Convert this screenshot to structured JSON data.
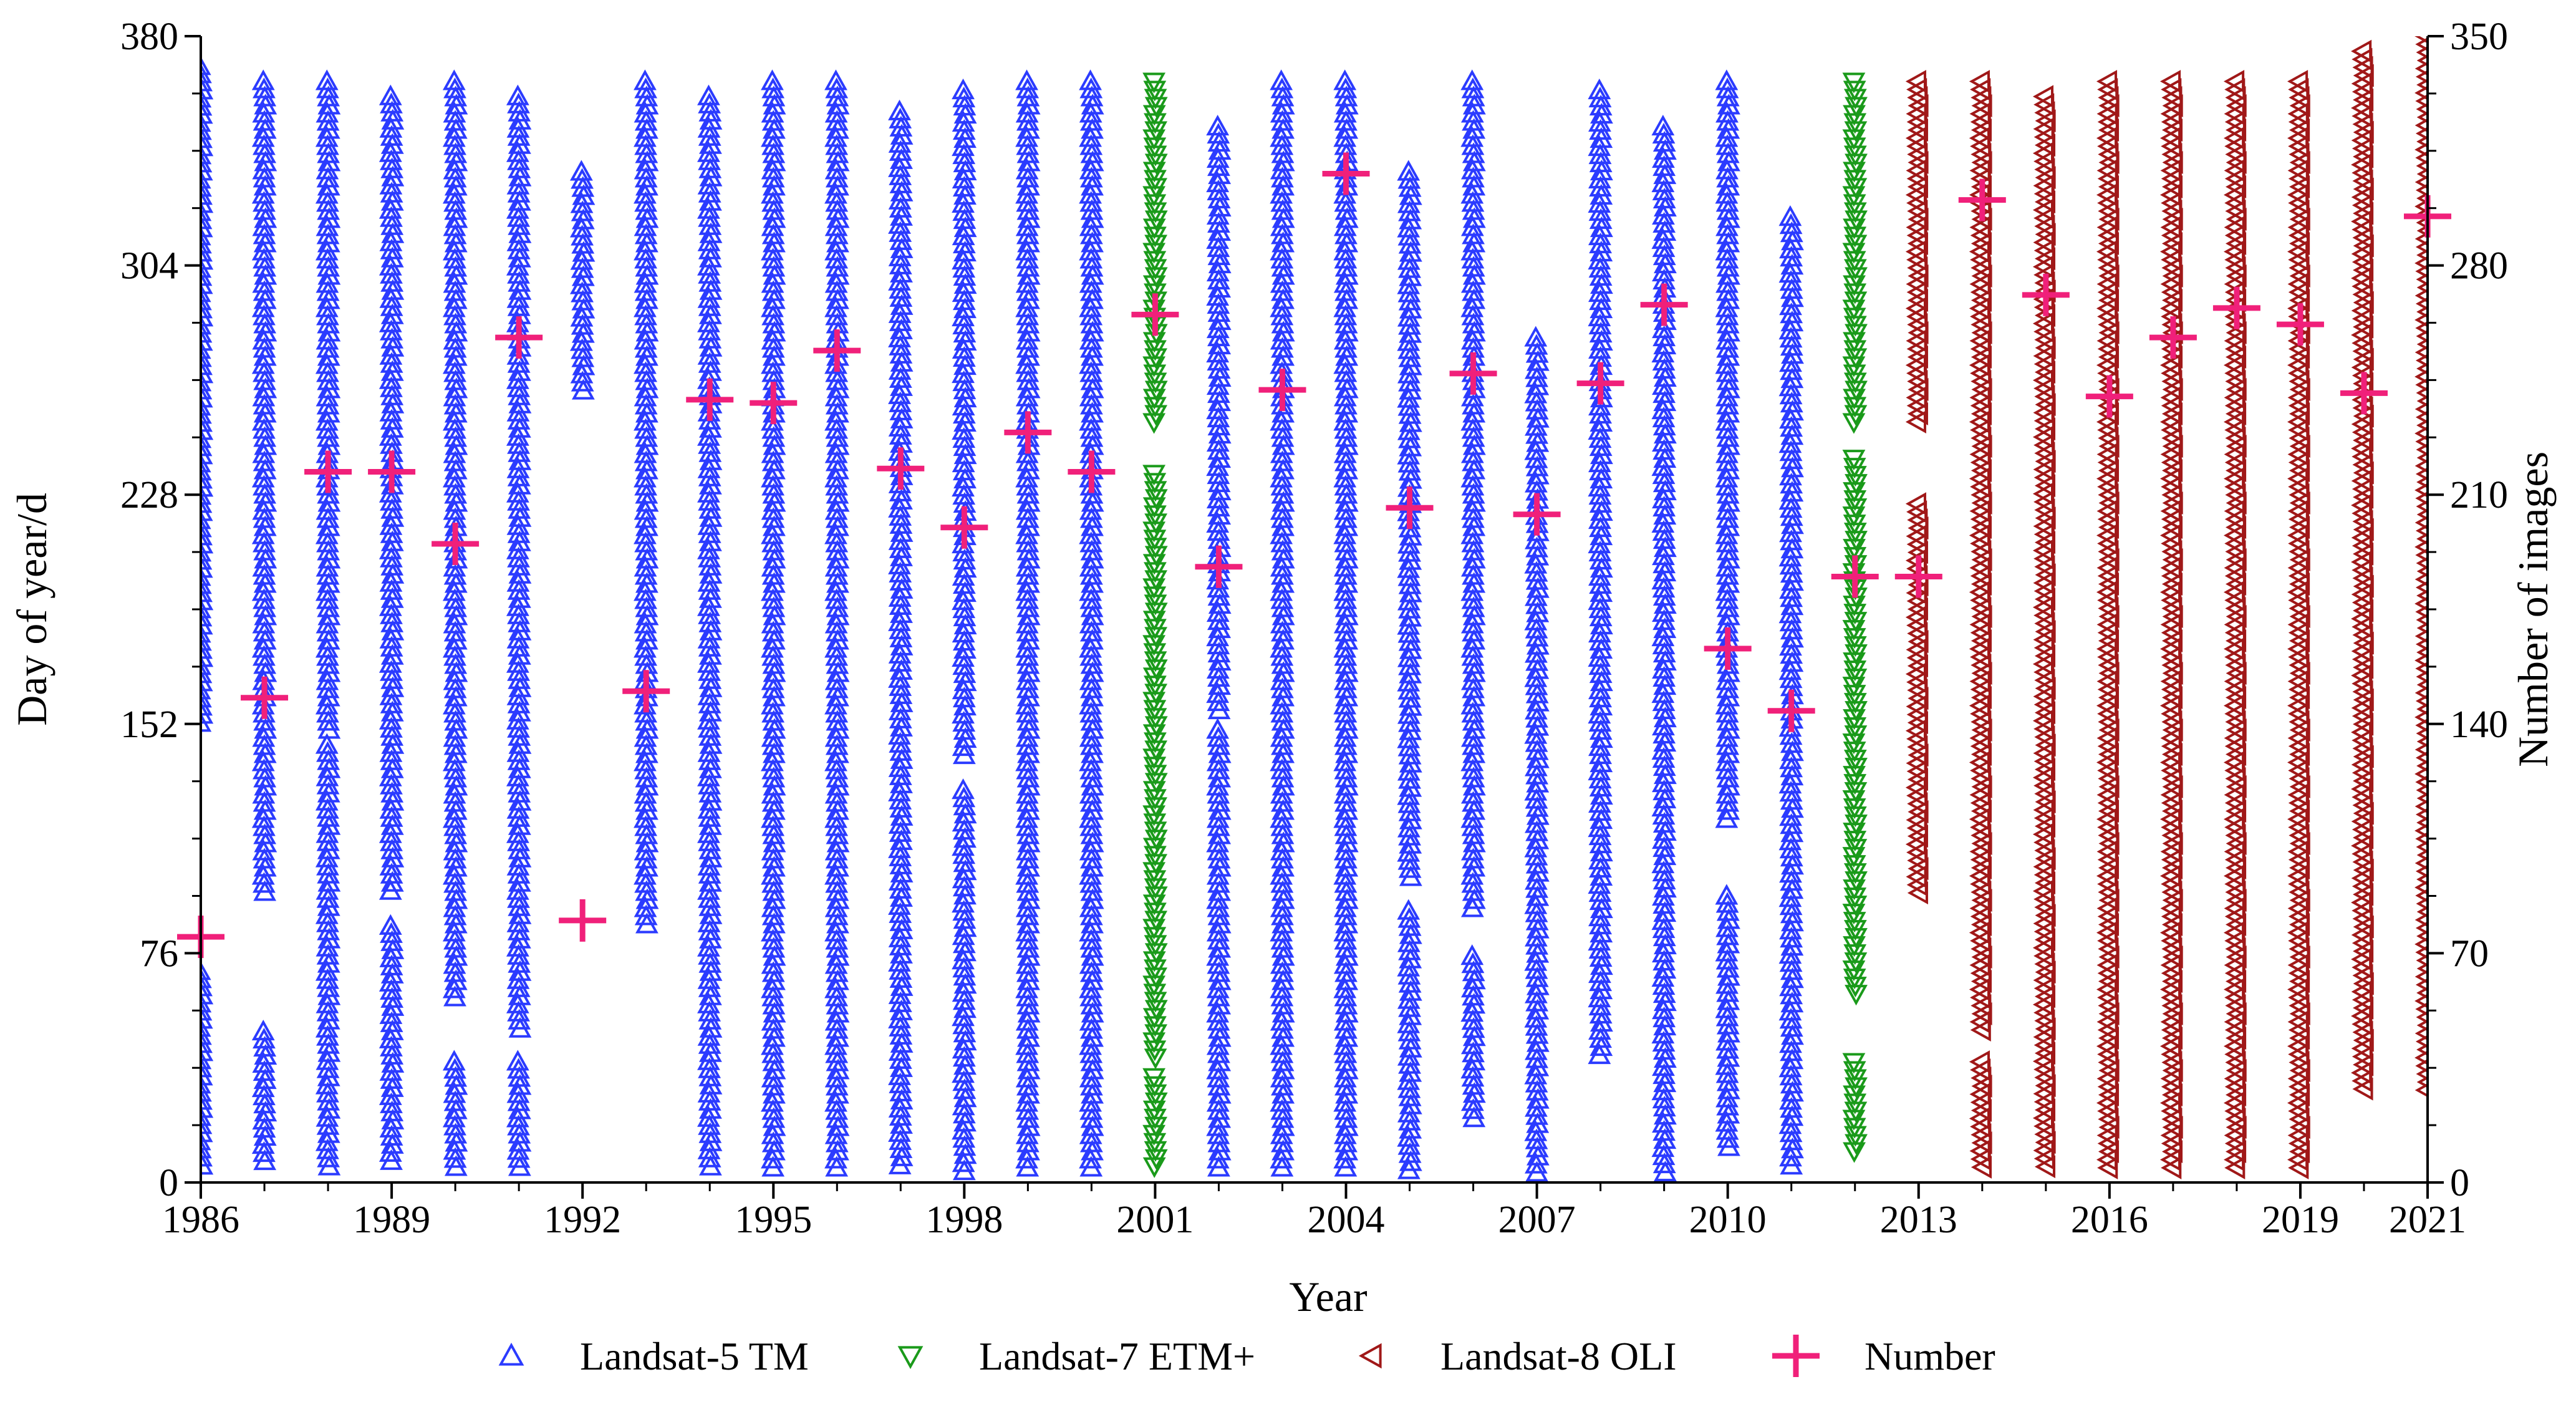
{
  "chart_data": {
    "type": "scatter",
    "title": "",
    "xlabel": "Year",
    "ylabel": "Day of year/d",
    "y2label": "Number of images",
    "xlim": [
      1986,
      2021
    ],
    "ylim": [
      0,
      380
    ],
    "y2lim": [
      0,
      350
    ],
    "x_ticks": [
      1986,
      1989,
      1992,
      1995,
      1998,
      2001,
      2004,
      2007,
      2010,
      2013,
      2016,
      2019,
      2021
    ],
    "y_ticks": [
      0,
      76,
      152,
      228,
      304,
      380
    ],
    "y2_ticks": [
      0,
      70,
      140,
      210,
      280,
      350
    ],
    "legend_position": "bottom",
    "colors": {
      "l5": "#2b3bff",
      "l7": "#1a9a1a",
      "l8": "#a01818",
      "number": "#f0207a",
      "axis": "#000000"
    },
    "series": [
      {
        "name": "Landsat-5 TM",
        "marker": "triangle-up",
        "color": "#2b3bff",
        "points": [
          {
            "year": 1986,
            "segments": [
              [
                5,
                70
              ],
              [
                150,
                370
              ]
            ]
          },
          {
            "year": 1987,
            "segments": [
              [
                5,
                50
              ],
              [
                95,
                365
              ]
            ]
          },
          {
            "year": 1988,
            "segments": [
              [
                3,
                145
              ],
              [
                150,
                365
              ]
            ]
          },
          {
            "year": 1989,
            "segments": [
              [
                5,
                85
              ],
              [
                95,
                360
              ]
            ]
          },
          {
            "year": 1990,
            "segments": [
              [
                5,
                40
              ],
              [
                60,
                365
              ]
            ]
          },
          {
            "year": 1991,
            "segments": [
              [
                5,
                40
              ],
              [
                50,
                360
              ]
            ]
          },
          {
            "year": 1992,
            "segments": [
              [
                260,
                335
              ]
            ]
          },
          {
            "year": 1993,
            "segments": [
              [
                85,
                365
              ]
            ]
          },
          {
            "year": 1994,
            "segments": [
              [
                3,
                360
              ]
            ]
          },
          {
            "year": 1995,
            "segments": [
              [
                3,
                365
              ]
            ]
          },
          {
            "year": 1996,
            "segments": [
              [
                3,
                365
              ]
            ]
          },
          {
            "year": 1997,
            "segments": [
              [
                3,
                355
              ]
            ]
          },
          {
            "year": 1998,
            "segments": [
              [
                3,
                130
              ],
              [
                140,
                362
              ]
            ]
          },
          {
            "year": 1999,
            "segments": [
              [
                3,
                365
              ]
            ]
          },
          {
            "year": 2000,
            "segments": [
              [
                3,
                365
              ]
            ]
          },
          {
            "year": 2002,
            "segments": [
              [
                3,
                150
              ],
              [
                155,
                350
              ]
            ]
          },
          {
            "year": 2003,
            "segments": [
              [
                3,
                365
              ]
            ]
          },
          {
            "year": 2004,
            "segments": [
              [
                3,
                365
              ]
            ]
          },
          {
            "year": 2005,
            "segments": [
              [
                3,
                90
              ],
              [
                100,
                335
              ]
            ]
          },
          {
            "year": 2006,
            "segments": [
              [
                20,
                75
              ],
              [
                90,
                365
              ]
            ]
          },
          {
            "year": 2007,
            "segments": [
              [
                3,
                280
              ]
            ]
          },
          {
            "year": 2008,
            "segments": [
              [
                40,
                362
              ]
            ]
          },
          {
            "year": 2009,
            "segments": [
              [
                3,
                350
              ]
            ]
          },
          {
            "year": 2010,
            "segments": [
              [
                10,
                95
              ],
              [
                120,
                365
              ]
            ]
          },
          {
            "year": 2011,
            "segments": [
              [
                3,
                320
              ]
            ]
          }
        ]
      },
      {
        "name": "Landsat-7 ETM+",
        "marker": "triangle-down",
        "color": "#1a9a1a",
        "points": [
          {
            "year": 2001,
            "segments": [
              [
                3,
                35
              ],
              [
                40,
                235
              ],
              [
                250,
                365
              ]
            ]
          },
          {
            "year": 2012,
            "segments": [
              [
                10,
                40
              ],
              [
                60,
                240
              ],
              [
                250,
                365
              ]
            ]
          }
        ]
      },
      {
        "name": "Landsat-8 OLI",
        "marker": "triangle-left",
        "color": "#a01818",
        "points": [
          {
            "year": 2013,
            "segments": [
              [
                95,
                225
              ],
              [
                250,
                365
              ]
            ]
          },
          {
            "year": 2014,
            "segments": [
              [
                3,
                40
              ],
              [
                50,
                365
              ]
            ]
          },
          {
            "year": 2015,
            "segments": [
              [
                3,
                360
              ]
            ]
          },
          {
            "year": 2016,
            "segments": [
              [
                3,
                365
              ]
            ]
          },
          {
            "year": 2017,
            "segments": [
              [
                3,
                365
              ]
            ]
          },
          {
            "year": 2018,
            "segments": [
              [
                3,
                365
              ]
            ]
          },
          {
            "year": 2019,
            "segments": [
              [
                3,
                365
              ]
            ]
          },
          {
            "year": 2020,
            "segments": [
              [
                30,
                375
              ]
            ]
          },
          {
            "year": 2021,
            "segments": [
              [
                30,
                380
              ]
            ]
          }
        ]
      },
      {
        "name": "Number",
        "marker": "plus",
        "color": "#f0207a",
        "axis": "right",
        "x": [
          1986,
          1987,
          1988,
          1989,
          1990,
          1991,
          1992,
          1993,
          1994,
          1995,
          1996,
          1997,
          1998,
          1999,
          2000,
          2001,
          2002,
          2003,
          2004,
          2005,
          2006,
          2007,
          2008,
          2009,
          2010,
          2011,
          2012,
          2013,
          2014,
          2015,
          2016,
          2017,
          2018,
          2019,
          2020,
          2021
        ],
        "values": [
          75,
          148,
          217,
          217,
          195,
          258,
          80,
          150,
          239,
          238,
          254,
          218,
          200,
          229,
          217,
          265,
          188,
          242,
          308,
          206,
          247,
          204,
          244,
          268,
          163,
          144,
          185,
          185,
          300,
          271,
          240,
          258,
          267,
          262,
          241,
          295
        ]
      }
    ]
  }
}
